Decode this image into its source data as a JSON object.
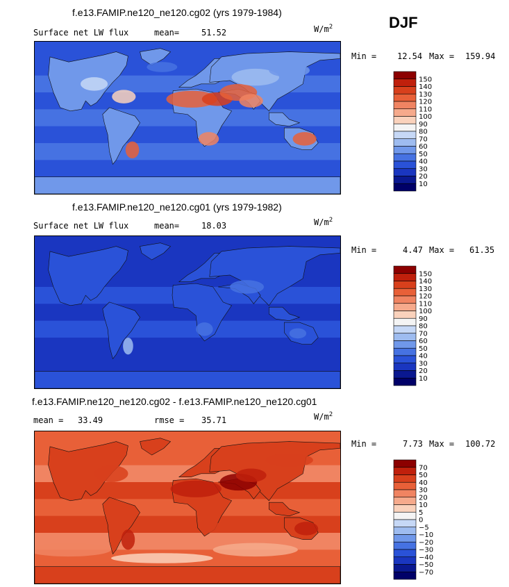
{
  "season": "DJF",
  "chart_data": [
    {
      "type": "heatmap",
      "title": "f.e13.FAMIP.ne120_ne120.cg02 (yrs 1979-1984)",
      "variable": "Surface net LW flux",
      "stat_label": "mean=",
      "stat_value": "51.52",
      "units": "W/m²",
      "units_base": "W/m",
      "units_exp": "2",
      "min_label": "Min =",
      "min_value": "12.54",
      "max_label": "Max =",
      "max_value": "159.94",
      "levels": [
        "150",
        "140",
        "130",
        "120",
        "110",
        "100",
        "90",
        "80",
        "70",
        "60",
        "50",
        "40",
        "30",
        "20",
        "10"
      ],
      "colors": [
        "#8c0000",
        "#c0200c",
        "#d8401c",
        "#e86038",
        "#f08462",
        "#f6aa8c",
        "#fad2bc",
        "#f4f4f4",
        "#c6d8f6",
        "#9ebcf0",
        "#7098ea",
        "#4672e2",
        "#2a52d8",
        "#1a36c0",
        "#0a1890",
        "#000068"
      ],
      "range": [
        12.54,
        159.94
      ],
      "mean": 51.52
    },
    {
      "type": "heatmap",
      "title": "f.e13.FAMIP.ne120_ne120.cg01 (yrs 1979-1982)",
      "variable": "Surface net LW flux",
      "stat_label": "mean=",
      "stat_value": "18.03",
      "units": "W/m²",
      "units_base": "W/m",
      "units_exp": "2",
      "min_label": "Min =",
      "min_value": "4.47",
      "max_label": "Max =",
      "max_value": "61.35",
      "levels": [
        "150",
        "140",
        "130",
        "120",
        "110",
        "100",
        "90",
        "80",
        "70",
        "60",
        "50",
        "40",
        "30",
        "20",
        "10"
      ],
      "colors": [
        "#8c0000",
        "#c0200c",
        "#d8401c",
        "#e86038",
        "#f08462",
        "#f6aa8c",
        "#fad2bc",
        "#f4f4f4",
        "#c6d8f6",
        "#9ebcf0",
        "#7098ea",
        "#4672e2",
        "#2a52d8",
        "#1a36c0",
        "#0a1890",
        "#000068"
      ],
      "range": [
        4.47,
        61.35
      ],
      "mean": 18.03
    },
    {
      "type": "heatmap",
      "title": "f.e13.FAMIP.ne120_ne120.cg02 - f.e13.FAMIP.ne120_ne120.cg01",
      "variable": "mean =",
      "stat_label": "rmse =",
      "mean_value": "33.49",
      "stat_value": "35.71",
      "units": "W/m²",
      "units_base": "W/m",
      "units_exp": "2",
      "min_label": "Min =",
      "min_value": "7.73",
      "max_label": "Max =",
      "max_value": "100.72",
      "levels": [
        "70",
        "50",
        "40",
        "30",
        "20",
        "10",
        "5",
        "0",
        "−5",
        "−10",
        "−20",
        "−30",
        "−40",
        "−50",
        "−70"
      ],
      "colors": [
        "#8c0000",
        "#c0200c",
        "#d8401c",
        "#e86038",
        "#f08462",
        "#f6aa8c",
        "#fad2bc",
        "#f4f4f4",
        "#c6d8f6",
        "#9ebcf0",
        "#7098ea",
        "#4672e2",
        "#2a52d8",
        "#1a36c0",
        "#0a1890",
        "#000068"
      ],
      "range": [
        7.73,
        100.72
      ],
      "mean": 33.49,
      "rmse": 35.71
    }
  ]
}
